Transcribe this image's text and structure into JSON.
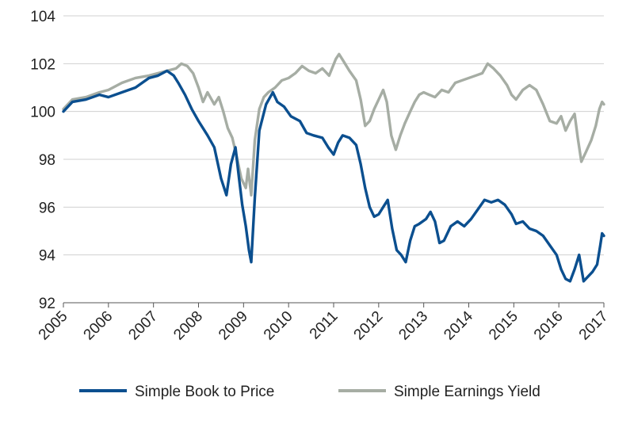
{
  "chart_data": {
    "type": "line",
    "title": "",
    "xlabel": "",
    "ylabel": "",
    "xlim": [
      2005,
      2017
    ],
    "ylim": [
      92,
      104
    ],
    "y_ticks": [
      92,
      94,
      96,
      98,
      100,
      102,
      104
    ],
    "x_ticks": [
      2005,
      2006,
      2007,
      2008,
      2009,
      2010,
      2011,
      2012,
      2013,
      2014,
      2015,
      2016,
      2017
    ],
    "y_tick_labels": [
      "92",
      "94",
      "96",
      "98",
      "100",
      "102",
      "104"
    ],
    "x_tick_labels": [
      "2005",
      "2006",
      "2007",
      "2008",
      "2009",
      "2010",
      "2011",
      "2012",
      "2013",
      "2014",
      "2015",
      "2016",
      "2017"
    ],
    "grid": "horizontal",
    "legend_position": "bottom",
    "series": [
      {
        "name": "Simple Book to Price",
        "color": "#0b4f8f",
        "points": [
          [
            2005.0,
            100.0
          ],
          [
            2005.2,
            100.4
          ],
          [
            2005.5,
            100.5
          ],
          [
            2005.8,
            100.7
          ],
          [
            2006.0,
            100.6
          ],
          [
            2006.3,
            100.8
          ],
          [
            2006.6,
            101.0
          ],
          [
            2006.9,
            101.4
          ],
          [
            2007.1,
            101.5
          ],
          [
            2007.3,
            101.7
          ],
          [
            2007.45,
            101.5
          ],
          [
            2007.55,
            101.2
          ],
          [
            2007.7,
            100.7
          ],
          [
            2007.85,
            100.1
          ],
          [
            2008.0,
            99.6
          ],
          [
            2008.2,
            99.0
          ],
          [
            2008.35,
            98.5
          ],
          [
            2008.5,
            97.2
          ],
          [
            2008.62,
            96.5
          ],
          [
            2008.72,
            97.8
          ],
          [
            2008.82,
            98.5
          ],
          [
            2008.9,
            97.2
          ],
          [
            2008.97,
            96.1
          ],
          [
            2009.05,
            95.2
          ],
          [
            2009.12,
            94.2
          ],
          [
            2009.17,
            93.7
          ],
          [
            2009.25,
            96.4
          ],
          [
            2009.35,
            99.2
          ],
          [
            2009.5,
            100.3
          ],
          [
            2009.65,
            100.8
          ],
          [
            2009.75,
            100.4
          ],
          [
            2009.9,
            100.2
          ],
          [
            2010.05,
            99.8
          ],
          [
            2010.25,
            99.6
          ],
          [
            2010.4,
            99.1
          ],
          [
            2010.55,
            99.0
          ],
          [
            2010.75,
            98.9
          ],
          [
            2010.88,
            98.5
          ],
          [
            2011.0,
            98.2
          ],
          [
            2011.1,
            98.7
          ],
          [
            2011.2,
            99.0
          ],
          [
            2011.35,
            98.9
          ],
          [
            2011.5,
            98.6
          ],
          [
            2011.6,
            97.8
          ],
          [
            2011.7,
            96.8
          ],
          [
            2011.8,
            96.0
          ],
          [
            2011.9,
            95.6
          ],
          [
            2012.0,
            95.7
          ],
          [
            2012.1,
            96.0
          ],
          [
            2012.2,
            96.3
          ],
          [
            2012.3,
            95.1
          ],
          [
            2012.4,
            94.2
          ],
          [
            2012.5,
            94.0
          ],
          [
            2012.6,
            93.7
          ],
          [
            2012.7,
            94.6
          ],
          [
            2012.8,
            95.2
          ],
          [
            2012.9,
            95.3
          ],
          [
            2013.05,
            95.5
          ],
          [
            2013.15,
            95.8
          ],
          [
            2013.25,
            95.4
          ],
          [
            2013.35,
            94.5
          ],
          [
            2013.45,
            94.6
          ],
          [
            2013.6,
            95.2
          ],
          [
            2013.75,
            95.4
          ],
          [
            2013.9,
            95.2
          ],
          [
            2014.05,
            95.5
          ],
          [
            2014.2,
            95.9
          ],
          [
            2014.35,
            96.3
          ],
          [
            2014.5,
            96.2
          ],
          [
            2014.65,
            96.3
          ],
          [
            2014.8,
            96.1
          ],
          [
            2014.95,
            95.7
          ],
          [
            2015.05,
            95.3
          ],
          [
            2015.2,
            95.4
          ],
          [
            2015.35,
            95.1
          ],
          [
            2015.5,
            95.0
          ],
          [
            2015.65,
            94.8
          ],
          [
            2015.8,
            94.4
          ],
          [
            2015.95,
            94.0
          ],
          [
            2016.05,
            93.4
          ],
          [
            2016.15,
            93.0
          ],
          [
            2016.25,
            92.9
          ],
          [
            2016.35,
            93.4
          ],
          [
            2016.45,
            94.0
          ],
          [
            2016.55,
            92.9
          ],
          [
            2016.65,
            93.1
          ],
          [
            2016.75,
            93.3
          ],
          [
            2016.85,
            93.6
          ],
          [
            2016.92,
            94.4
          ],
          [
            2016.96,
            94.9
          ],
          [
            2017.0,
            94.8
          ]
        ]
      },
      {
        "name": "Simple Earnings Yield",
        "color": "#a6ada4",
        "points": [
          [
            2005.0,
            100.1
          ],
          [
            2005.2,
            100.5
          ],
          [
            2005.5,
            100.6
          ],
          [
            2005.8,
            100.8
          ],
          [
            2006.0,
            100.9
          ],
          [
            2006.3,
            101.2
          ],
          [
            2006.6,
            101.4
          ],
          [
            2006.9,
            101.5
          ],
          [
            2007.1,
            101.6
          ],
          [
            2007.3,
            101.7
          ],
          [
            2007.5,
            101.8
          ],
          [
            2007.62,
            102.0
          ],
          [
            2007.75,
            101.9
          ],
          [
            2007.88,
            101.6
          ],
          [
            2008.0,
            101.0
          ],
          [
            2008.1,
            100.4
          ],
          [
            2008.2,
            100.8
          ],
          [
            2008.35,
            100.3
          ],
          [
            2008.45,
            100.6
          ],
          [
            2008.55,
            100.0
          ],
          [
            2008.65,
            99.3
          ],
          [
            2008.75,
            98.9
          ],
          [
            2008.85,
            98.1
          ],
          [
            2008.95,
            97.2
          ],
          [
            2009.05,
            96.8
          ],
          [
            2009.1,
            97.6
          ],
          [
            2009.17,
            96.5
          ],
          [
            2009.25,
            98.8
          ],
          [
            2009.35,
            100.1
          ],
          [
            2009.45,
            100.6
          ],
          [
            2009.55,
            100.8
          ],
          [
            2009.7,
            101.0
          ],
          [
            2009.85,
            101.3
          ],
          [
            2010.0,
            101.4
          ],
          [
            2010.15,
            101.6
          ],
          [
            2010.3,
            101.9
          ],
          [
            2010.45,
            101.7
          ],
          [
            2010.6,
            101.6
          ],
          [
            2010.75,
            101.8
          ],
          [
            2010.9,
            101.5
          ],
          [
            2011.05,
            102.2
          ],
          [
            2011.12,
            102.4
          ],
          [
            2011.22,
            102.1
          ],
          [
            2011.35,
            101.7
          ],
          [
            2011.5,
            101.3
          ],
          [
            2011.6,
            100.5
          ],
          [
            2011.7,
            99.4
          ],
          [
            2011.8,
            99.6
          ],
          [
            2011.9,
            100.1
          ],
          [
            2012.0,
            100.5
          ],
          [
            2012.1,
            100.9
          ],
          [
            2012.18,
            100.4
          ],
          [
            2012.28,
            99.0
          ],
          [
            2012.38,
            98.4
          ],
          [
            2012.48,
            99.0
          ],
          [
            2012.58,
            99.5
          ],
          [
            2012.7,
            100.0
          ],
          [
            2012.8,
            100.4
          ],
          [
            2012.9,
            100.7
          ],
          [
            2013.0,
            100.8
          ],
          [
            2013.12,
            100.7
          ],
          [
            2013.25,
            100.6
          ],
          [
            2013.4,
            100.9
          ],
          [
            2013.55,
            100.8
          ],
          [
            2013.7,
            101.2
          ],
          [
            2013.85,
            101.3
          ],
          [
            2014.0,
            101.4
          ],
          [
            2014.15,
            101.5
          ],
          [
            2014.3,
            101.6
          ],
          [
            2014.42,
            102.0
          ],
          [
            2014.55,
            101.8
          ],
          [
            2014.7,
            101.5
          ],
          [
            2014.85,
            101.1
          ],
          [
            2014.95,
            100.7
          ],
          [
            2015.05,
            100.5
          ],
          [
            2015.2,
            100.9
          ],
          [
            2015.35,
            101.1
          ],
          [
            2015.5,
            100.9
          ],
          [
            2015.65,
            100.3
          ],
          [
            2015.8,
            99.6
          ],
          [
            2015.95,
            99.5
          ],
          [
            2016.05,
            99.8
          ],
          [
            2016.15,
            99.2
          ],
          [
            2016.25,
            99.6
          ],
          [
            2016.35,
            99.9
          ],
          [
            2016.42,
            98.9
          ],
          [
            2016.5,
            97.9
          ],
          [
            2016.6,
            98.3
          ],
          [
            2016.72,
            98.8
          ],
          [
            2016.82,
            99.4
          ],
          [
            2016.9,
            100.1
          ],
          [
            2016.96,
            100.4
          ],
          [
            2017.0,
            100.3
          ]
        ]
      }
    ]
  }
}
